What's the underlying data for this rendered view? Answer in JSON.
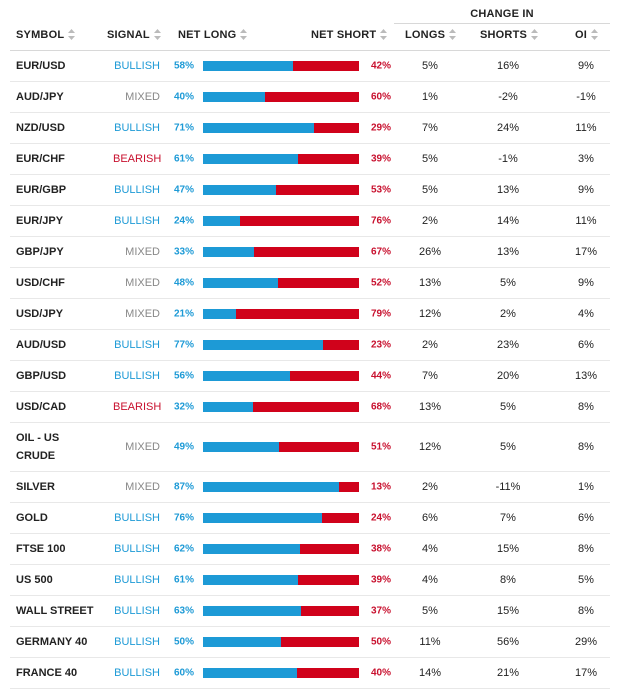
{
  "header": {
    "change_group": "CHANGE IN",
    "symbol": "SYMBOL",
    "signal": "SIGNAL",
    "net_long": "NET LONG",
    "net_short": "NET SHORT",
    "longs": "LONGS",
    "shorts": "SHORTS",
    "oi": "OI"
  },
  "colors": {
    "bullish": "#1d9ad6",
    "bearish": "#c8102e",
    "mixed": "#888888",
    "long_bar": "#1d9ad6",
    "short_bar": "#d0021b"
  },
  "rows": [
    {
      "symbol": "EUR/USD",
      "signal": "BULLISH",
      "net_long": "58%",
      "net_short": "42%",
      "longs": "5%",
      "shorts": "16%",
      "oi": "9%",
      "long_fraction": 0.58
    },
    {
      "symbol": "AUD/JPY",
      "signal": "MIXED",
      "net_long": "40%",
      "net_short": "60%",
      "longs": "1%",
      "shorts": "-2%",
      "oi": "-1%",
      "long_fraction": 0.4
    },
    {
      "symbol": "NZD/USD",
      "signal": "BULLISH",
      "net_long": "71%",
      "net_short": "29%",
      "longs": "7%",
      "shorts": "24%",
      "oi": "11%",
      "long_fraction": 0.71
    },
    {
      "symbol": "EUR/CHF",
      "signal": "BEARISH",
      "net_long": "61%",
      "net_short": "39%",
      "longs": "5%",
      "shorts": "-1%",
      "oi": "3%",
      "long_fraction": 0.61
    },
    {
      "symbol": "EUR/GBP",
      "signal": "BULLISH",
      "net_long": "47%",
      "net_short": "53%",
      "longs": "5%",
      "shorts": "13%",
      "oi": "9%",
      "long_fraction": 0.47
    },
    {
      "symbol": "EUR/JPY",
      "signal": "BULLISH",
      "net_long": "24%",
      "net_short": "76%",
      "longs": "2%",
      "shorts": "14%",
      "oi": "11%",
      "long_fraction": 0.24
    },
    {
      "symbol": "GBP/JPY",
      "signal": "MIXED",
      "net_long": "33%",
      "net_short": "67%",
      "longs": "26%",
      "shorts": "13%",
      "oi": "17%",
      "long_fraction": 0.33
    },
    {
      "symbol": "USD/CHF",
      "signal": "MIXED",
      "net_long": "48%",
      "net_short": "52%",
      "longs": "13%",
      "shorts": "5%",
      "oi": "9%",
      "long_fraction": 0.48
    },
    {
      "symbol": "USD/JPY",
      "signal": "MIXED",
      "net_long": "21%",
      "net_short": "79%",
      "longs": "12%",
      "shorts": "2%",
      "oi": "4%",
      "long_fraction": 0.21
    },
    {
      "symbol": "AUD/USD",
      "signal": "BULLISH",
      "net_long": "77%",
      "net_short": "23%",
      "longs": "2%",
      "shorts": "23%",
      "oi": "6%",
      "long_fraction": 0.77
    },
    {
      "symbol": "GBP/USD",
      "signal": "BULLISH",
      "net_long": "56%",
      "net_short": "44%",
      "longs": "7%",
      "shorts": "20%",
      "oi": "13%",
      "long_fraction": 0.56
    },
    {
      "symbol": "USD/CAD",
      "signal": "BEARISH",
      "net_long": "32%",
      "net_short": "68%",
      "longs": "13%",
      "shorts": "5%",
      "oi": "8%",
      "long_fraction": 0.32
    },
    {
      "symbol": "OIL - US CRUDE",
      "signal": "MIXED",
      "net_long": "49%",
      "net_short": "51%",
      "longs": "12%",
      "shorts": "5%",
      "oi": "8%",
      "long_fraction": 0.49,
      "tall": true
    },
    {
      "symbol": "SILVER",
      "signal": "MIXED",
      "net_long": "87%",
      "net_short": "13%",
      "longs": "2%",
      "shorts": "-11%",
      "oi": "1%",
      "long_fraction": 0.87
    },
    {
      "symbol": "GOLD",
      "signal": "BULLISH",
      "net_long": "76%",
      "net_short": "24%",
      "longs": "6%",
      "shorts": "7%",
      "oi": "6%",
      "long_fraction": 0.76
    },
    {
      "symbol": "FTSE 100",
      "signal": "BULLISH",
      "net_long": "62%",
      "net_short": "38%",
      "longs": "4%",
      "shorts": "15%",
      "oi": "8%",
      "long_fraction": 0.62
    },
    {
      "symbol": "US 500",
      "signal": "BULLISH",
      "net_long": "61%",
      "net_short": "39%",
      "longs": "4%",
      "shorts": "8%",
      "oi": "5%",
      "long_fraction": 0.61
    },
    {
      "symbol": "WALL STREET",
      "signal": "BULLISH",
      "net_long": "63%",
      "net_short": "37%",
      "longs": "5%",
      "shorts": "15%",
      "oi": "8%",
      "long_fraction": 0.63
    },
    {
      "symbol": "GERMANY 40",
      "signal": "BULLISH",
      "net_long": "50%",
      "net_short": "50%",
      "longs": "11%",
      "shorts": "56%",
      "oi": "29%",
      "long_fraction": 0.5
    },
    {
      "symbol": "FRANCE 40",
      "signal": "BULLISH",
      "net_long": "60%",
      "net_short": "40%",
      "longs": "14%",
      "shorts": "21%",
      "oi": "17%",
      "long_fraction": 0.6
    }
  ]
}
